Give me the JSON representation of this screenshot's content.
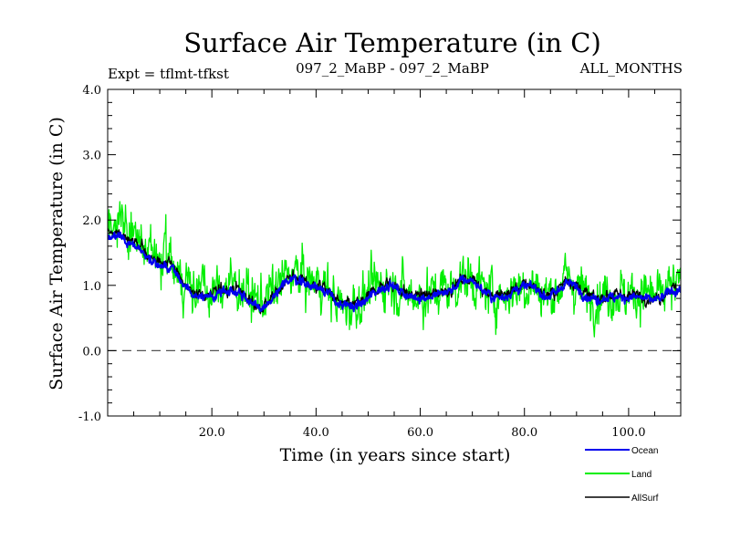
{
  "chart_data": {
    "type": "line",
    "title": "Surface Air Temperature (in C)",
    "subtitle_left": "Expt = tflmt-tfkst",
    "subtitle_center": "097_2_MaBP - 097_2_MaBP",
    "subtitle_right": "ALL_MONTHS",
    "xlabel": "Time (in years since start)",
    "ylabel": "Surface Air Temperature (in C)",
    "xlim": [
      0,
      110
    ],
    "ylim": [
      -1.0,
      4.0
    ],
    "x_ticks": [
      20,
      40,
      60,
      80,
      100
    ],
    "x_tick_labels": [
      "20.0",
      "40.0",
      "60.0",
      "80.0",
      "100.0"
    ],
    "y_ticks": [
      -1,
      0,
      1,
      2,
      3,
      4
    ],
    "y_tick_labels": [
      "-1.0",
      "0.0",
      "1.0",
      "2.0",
      "3.0",
      "4.0"
    ],
    "reference_line": 0.0,
    "legend_position": "bottom-right",
    "series": [
      {
        "name": "Land",
        "color": "#00ee00",
        "noise": 0.38,
        "anchors": [
          [
            0,
            1.9
          ],
          [
            2,
            2.1
          ],
          [
            4,
            1.8
          ],
          [
            6,
            1.7
          ],
          [
            8,
            1.45
          ],
          [
            10,
            1.45
          ],
          [
            12,
            1.4
          ],
          [
            15,
            1.05
          ],
          [
            18,
            0.95
          ],
          [
            20,
            0.85
          ],
          [
            22,
            1.0
          ],
          [
            25,
            1.0
          ],
          [
            27,
            0.85
          ],
          [
            29,
            0.75
          ],
          [
            31,
            0.85
          ],
          [
            33,
            1.0
          ],
          [
            35,
            1.2
          ],
          [
            37,
            1.15
          ],
          [
            39,
            1.05
          ],
          [
            41,
            1.05
          ],
          [
            43,
            0.85
          ],
          [
            45,
            0.65
          ],
          [
            47,
            0.7
          ],
          [
            49,
            0.8
          ],
          [
            51,
            0.95
          ],
          [
            54,
            1.05
          ],
          [
            56,
            0.95
          ],
          [
            58,
            0.85
          ],
          [
            60,
            0.85
          ],
          [
            62,
            0.85
          ],
          [
            64,
            0.95
          ],
          [
            66,
            0.95
          ],
          [
            68,
            1.1
          ],
          [
            70,
            1.1
          ],
          [
            72,
            0.95
          ],
          [
            74,
            0.85
          ],
          [
            76,
            0.85
          ],
          [
            78,
            0.95
          ],
          [
            80,
            1.0
          ],
          [
            82,
            1.0
          ],
          [
            84,
            0.85
          ],
          [
            86,
            0.9
          ],
          [
            88,
            1.1
          ],
          [
            90,
            1.0
          ],
          [
            92,
            0.85
          ],
          [
            94,
            0.85
          ],
          [
            96,
            0.9
          ],
          [
            98,
            0.9
          ],
          [
            100,
            0.85
          ],
          [
            102,
            0.9
          ],
          [
            104,
            0.85
          ],
          [
            106,
            0.8
          ],
          [
            108,
            0.95
          ],
          [
            110,
            0.95
          ]
        ]
      },
      {
        "name": "AllSurf",
        "color": "#000000",
        "noise": 0.09,
        "anchors": [
          [
            0,
            1.8
          ],
          [
            2,
            1.8
          ],
          [
            4,
            1.7
          ],
          [
            6,
            1.6
          ],
          [
            8,
            1.45
          ],
          [
            10,
            1.35
          ],
          [
            12,
            1.35
          ],
          [
            15,
            1.0
          ],
          [
            18,
            0.85
          ],
          [
            20,
            0.85
          ],
          [
            22,
            0.95
          ],
          [
            25,
            0.95
          ],
          [
            27,
            0.8
          ],
          [
            29,
            0.65
          ],
          [
            31,
            0.75
          ],
          [
            33,
            0.95
          ],
          [
            35,
            1.15
          ],
          [
            37,
            1.1
          ],
          [
            39,
            1.0
          ],
          [
            41,
            1.0
          ],
          [
            43,
            0.85
          ],
          [
            45,
            0.7
          ],
          [
            47,
            0.7
          ],
          [
            49,
            0.75
          ],
          [
            51,
            0.9
          ],
          [
            54,
            1.05
          ],
          [
            56,
            0.95
          ],
          [
            58,
            0.85
          ],
          [
            60,
            0.85
          ],
          [
            62,
            0.85
          ],
          [
            64,
            0.9
          ],
          [
            66,
            0.95
          ],
          [
            68,
            1.1
          ],
          [
            70,
            1.1
          ],
          [
            72,
            0.95
          ],
          [
            74,
            0.85
          ],
          [
            76,
            0.85
          ],
          [
            78,
            0.95
          ],
          [
            80,
            1.0
          ],
          [
            82,
            1.0
          ],
          [
            84,
            0.85
          ],
          [
            86,
            0.9
          ],
          [
            88,
            1.1
          ],
          [
            90,
            1.0
          ],
          [
            92,
            0.85
          ],
          [
            94,
            0.8
          ],
          [
            96,
            0.85
          ],
          [
            98,
            0.85
          ],
          [
            100,
            0.85
          ],
          [
            102,
            0.85
          ],
          [
            104,
            0.8
          ],
          [
            106,
            0.8
          ],
          [
            108,
            0.95
          ],
          [
            110,
            0.95
          ]
        ]
      },
      {
        "name": "Ocean",
        "color": "#0000ee",
        "noise": 0.07,
        "anchors": [
          [
            0,
            1.75
          ],
          [
            2,
            1.75
          ],
          [
            4,
            1.65
          ],
          [
            6,
            1.55
          ],
          [
            8,
            1.4
          ],
          [
            10,
            1.3
          ],
          [
            12,
            1.3
          ],
          [
            15,
            0.95
          ],
          [
            18,
            0.82
          ],
          [
            20,
            0.82
          ],
          [
            22,
            0.92
          ],
          [
            25,
            0.92
          ],
          [
            27,
            0.78
          ],
          [
            29,
            0.62
          ],
          [
            31,
            0.72
          ],
          [
            33,
            0.92
          ],
          [
            35,
            1.12
          ],
          [
            37,
            1.08
          ],
          [
            39,
            0.98
          ],
          [
            41,
            0.98
          ],
          [
            43,
            0.82
          ],
          [
            45,
            0.68
          ],
          [
            47,
            0.68
          ],
          [
            49,
            0.72
          ],
          [
            51,
            0.88
          ],
          [
            54,
            1.02
          ],
          [
            56,
            0.92
          ],
          [
            58,
            0.82
          ],
          [
            60,
            0.82
          ],
          [
            62,
            0.82
          ],
          [
            64,
            0.88
          ],
          [
            66,
            0.92
          ],
          [
            68,
            1.08
          ],
          [
            70,
            1.08
          ],
          [
            72,
            0.92
          ],
          [
            74,
            0.82
          ],
          [
            76,
            0.82
          ],
          [
            78,
            0.92
          ],
          [
            80,
            0.98
          ],
          [
            82,
            0.98
          ],
          [
            84,
            0.82
          ],
          [
            86,
            0.88
          ],
          [
            88,
            1.05
          ],
          [
            90,
            0.98
          ],
          [
            92,
            0.82
          ],
          [
            94,
            0.78
          ],
          [
            96,
            0.82
          ],
          [
            98,
            0.82
          ],
          [
            100,
            0.82
          ],
          [
            102,
            0.82
          ],
          [
            104,
            0.78
          ],
          [
            106,
            0.78
          ],
          [
            108,
            0.92
          ],
          [
            110,
            0.92
          ]
        ]
      }
    ],
    "legend": [
      {
        "label": "Ocean",
        "color": "#0000ee"
      },
      {
        "label": "Land",
        "color": "#00ee00"
      },
      {
        "label": "AllSurf",
        "color": "#000000"
      }
    ]
  }
}
